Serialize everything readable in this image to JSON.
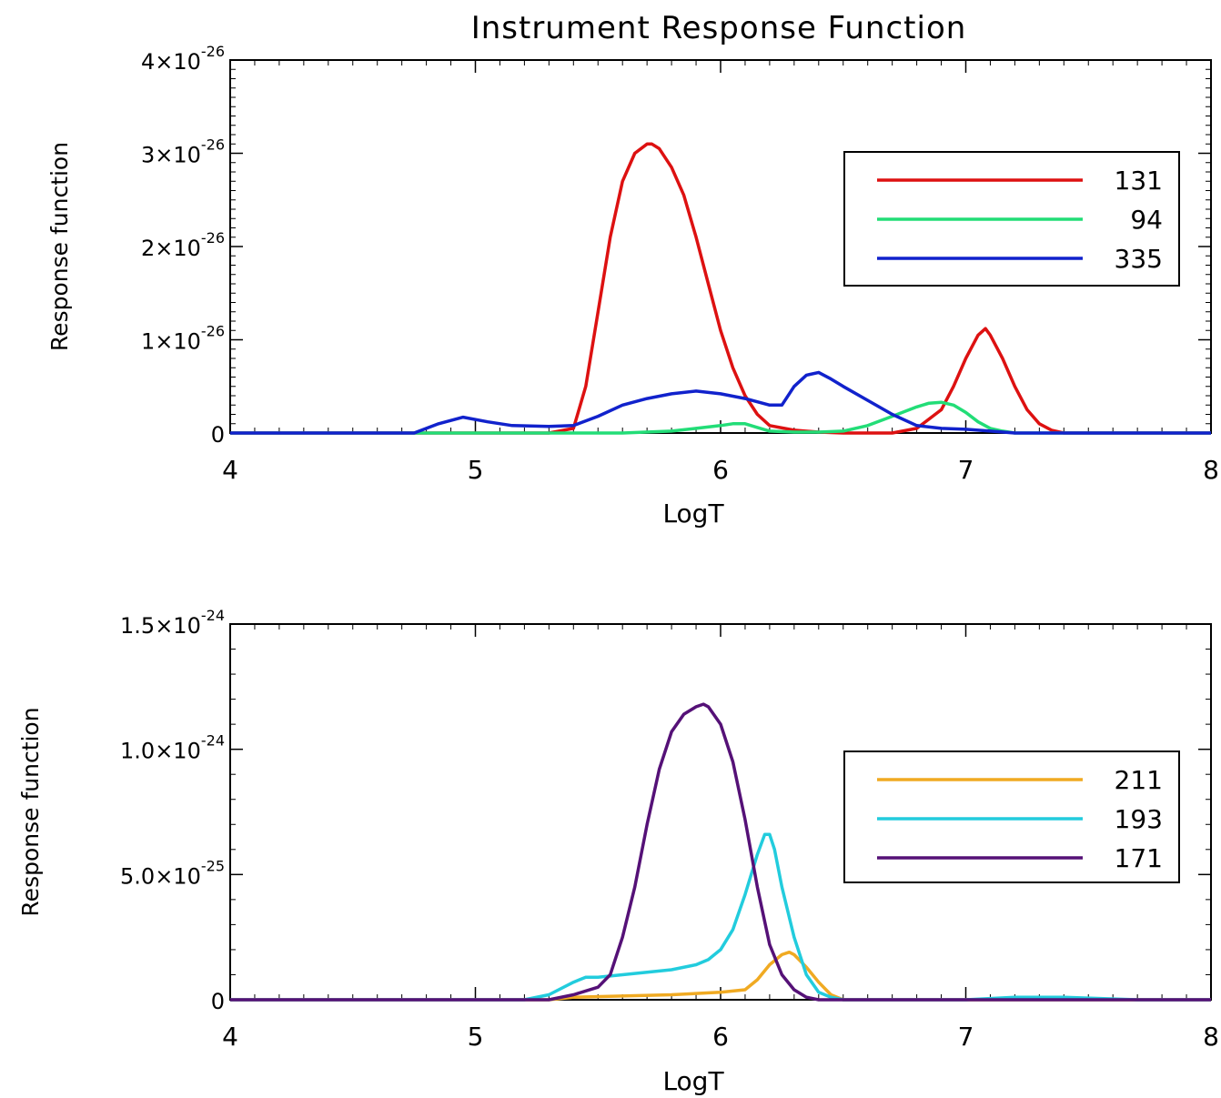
{
  "title": "Instrument Response Function",
  "chart_data": [
    {
      "type": "line",
      "xlabel": "LogT",
      "ylabel": "Response function",
      "xlim": [
        4,
        8
      ],
      "ylim": [
        0,
        4e-26
      ],
      "xticks": [
        "4",
        "5",
        "6",
        "7",
        "8"
      ],
      "yticks": [
        {
          "mantissa": "0",
          "exponent": ""
        },
        {
          "mantissa": "1×10",
          "exponent": "-26"
        },
        {
          "mantissa": "2×10",
          "exponent": "-26"
        },
        {
          "mantissa": "3×10",
          "exponent": "-26"
        },
        {
          "mantissa": "4×10",
          "exponent": "-26"
        }
      ],
      "legend_position": "top-right",
      "series": [
        {
          "name": "131",
          "color": "#dd1111",
          "x": [
            4.0,
            5.3,
            5.4,
            5.45,
            5.5,
            5.55,
            5.6,
            5.65,
            5.7,
            5.72,
            5.75,
            5.8,
            5.85,
            5.9,
            5.95,
            6.0,
            6.05,
            6.1,
            6.15,
            6.2,
            6.3,
            6.4,
            6.5,
            6.6,
            6.7,
            6.8,
            6.9,
            6.95,
            7.0,
            7.05,
            7.08,
            7.1,
            7.15,
            7.2,
            7.25,
            7.3,
            7.35,
            7.4,
            7.5,
            8.0
          ],
          "y": [
            0,
            0,
            5e-28,
            5e-27,
            1.3e-26,
            2.1e-26,
            2.7e-26,
            3e-26,
            3.1e-26,
            3.1e-26,
            3.05e-26,
            2.85e-26,
            2.55e-26,
            2.1e-26,
            1.6e-26,
            1.1e-26,
            7e-27,
            4e-27,
            2e-27,
            8e-28,
            3e-28,
            1e-28,
            0,
            0,
            0,
            5e-28,
            2.5e-27,
            5e-27,
            8e-27,
            1.05e-26,
            1.12e-26,
            1.05e-26,
            8e-27,
            5e-27,
            2.5e-27,
            1e-27,
            3e-28,
            0,
            0,
            0
          ]
        },
        {
          "name": "94",
          "color": "#22dd77",
          "x": [
            4.0,
            5.6,
            5.8,
            5.9,
            6.0,
            6.05,
            6.1,
            6.15,
            6.2,
            6.3,
            6.4,
            6.5,
            6.6,
            6.7,
            6.8,
            6.85,
            6.9,
            6.95,
            7.0,
            7.05,
            7.1,
            7.15,
            7.2,
            8.0
          ],
          "y": [
            0,
            0,
            2e-28,
            5e-28,
            8e-28,
            1e-27,
            1e-27,
            6e-28,
            2e-28,
            1e-28,
            1e-28,
            2e-28,
            8e-28,
            1.8e-27,
            2.8e-27,
            3.2e-27,
            3.3e-27,
            3e-27,
            2.2e-27,
            1.2e-27,
            5e-28,
            2e-28,
            0,
            0
          ]
        },
        {
          "name": "335",
          "color": "#1122cc",
          "x": [
            4.0,
            4.75,
            4.85,
            4.95,
            5.05,
            5.15,
            5.3,
            5.4,
            5.5,
            5.6,
            5.7,
            5.8,
            5.9,
            6.0,
            6.1,
            6.2,
            6.25,
            6.3,
            6.35,
            6.4,
            6.45,
            6.5,
            6.6,
            6.7,
            6.8,
            6.9,
            7.0,
            7.1,
            7.2,
            8.0
          ],
          "y": [
            0,
            0,
            1e-27,
            1.7e-27,
            1.2e-27,
            8e-28,
            7e-28,
            8e-28,
            1.8e-27,
            3e-27,
            3.7e-27,
            4.2e-27,
            4.5e-27,
            4.2e-27,
            3.7e-27,
            3e-27,
            3e-27,
            5e-27,
            6.2e-27,
            6.5e-27,
            5.8e-27,
            5e-27,
            3.5e-27,
            2e-27,
            8e-28,
            5e-28,
            4e-28,
            2e-28,
            0,
            0
          ]
        }
      ]
    },
    {
      "type": "line",
      "xlabel": "LogT",
      "ylabel": "Response function",
      "xlim": [
        4,
        8
      ],
      "ylim": [
        0,
        1.5e-24
      ],
      "xticks": [
        "4",
        "5",
        "6",
        "7",
        "8"
      ],
      "yticks": [
        {
          "mantissa": "0",
          "exponent": ""
        },
        {
          "mantissa": "5.0×10",
          "exponent": "-25"
        },
        {
          "mantissa": "1.0×10",
          "exponent": "-24"
        },
        {
          "mantissa": "1.5×10",
          "exponent": "-24"
        }
      ],
      "legend_position": "center-right",
      "series": [
        {
          "name": "211",
          "color": "#f0aa22",
          "x": [
            4.0,
            5.3,
            5.4,
            5.6,
            5.8,
            6.0,
            6.1,
            6.15,
            6.2,
            6.25,
            6.28,
            6.3,
            6.35,
            6.4,
            6.45,
            6.5,
            8.0
          ],
          "y": [
            0,
            0,
            1e-26,
            1.5e-26,
            2e-26,
            3e-26,
            4e-26,
            8e-26,
            1.4e-25,
            1.8e-25,
            1.9e-25,
            1.8e-25,
            1.3e-25,
            7e-26,
            2e-26,
            0,
            0
          ]
        },
        {
          "name": "193",
          "color": "#22ccdd",
          "x": [
            4.0,
            5.2,
            5.3,
            5.4,
            5.45,
            5.5,
            5.6,
            5.7,
            5.8,
            5.9,
            5.95,
            6.0,
            6.05,
            6.1,
            6.15,
            6.18,
            6.2,
            6.22,
            6.25,
            6.3,
            6.35,
            6.4,
            6.45,
            6.5,
            7.0,
            7.2,
            7.4,
            7.7,
            8.0
          ],
          "y": [
            0,
            0,
            2e-26,
            7e-26,
            9e-26,
            9e-26,
            1e-25,
            1.1e-25,
            1.2e-25,
            1.4e-25,
            1.6e-25,
            2e-25,
            2.8e-25,
            4.2e-25,
            5.8e-25,
            6.6e-25,
            6.6e-25,
            6e-25,
            4.5e-25,
            2.5e-25,
            1e-25,
            3e-26,
            1e-26,
            0,
            0,
            1e-26,
            1e-26,
            0,
            0
          ]
        },
        {
          "name": "171",
          "color": "#551177",
          "x": [
            4.0,
            5.3,
            5.4,
            5.5,
            5.55,
            5.6,
            5.65,
            5.7,
            5.75,
            5.8,
            5.85,
            5.9,
            5.93,
            5.95,
            6.0,
            6.05,
            6.1,
            6.15,
            6.2,
            6.25,
            6.3,
            6.35,
            6.4,
            6.5,
            8.0
          ],
          "y": [
            0,
            0,
            2e-26,
            5e-26,
            1e-25,
            2.5e-25,
            4.5e-25,
            7e-25,
            9.2e-25,
            1.07e-24,
            1.14e-24,
            1.17e-24,
            1.18e-24,
            1.17e-24,
            1.1e-24,
            9.5e-25,
            7.2e-25,
            4.5e-25,
            2.2e-25,
            1e-25,
            4e-26,
            1e-26,
            0,
            0,
            0
          ]
        }
      ]
    }
  ]
}
